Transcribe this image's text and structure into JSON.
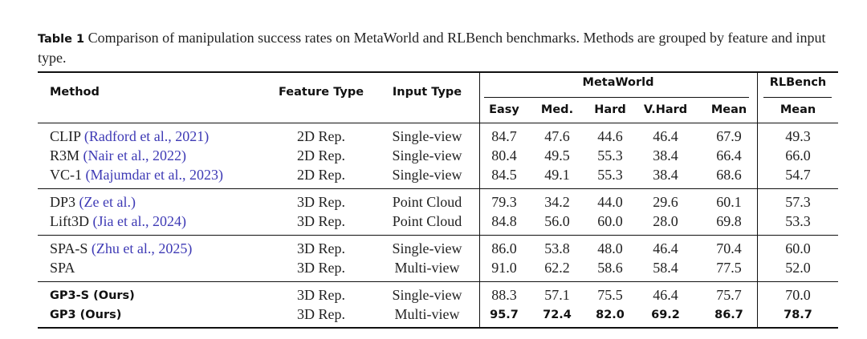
{
  "caption": {
    "label": "Table 1",
    "text": "Comparison of manipulation success rates on MetaWorld and RLBench benchmarks. Methods are grouped by feature and input type."
  },
  "headers": {
    "method": "Method",
    "feature_type": "Feature Type",
    "input_type": "Input Type",
    "metaworld": "MetaWorld",
    "rlbench": "RLBench",
    "easy": "Easy",
    "med": "Med.",
    "hard": "Hard",
    "vhard": "V.Hard",
    "mean": "Mean",
    "rl_mean": "Mean"
  },
  "rows": [
    {
      "name": "CLIP",
      "cite": "(Radford et al., 2021)",
      "feature": "2D Rep.",
      "input": "Single-view",
      "vals": [
        "84.7",
        "47.6",
        "44.6",
        "46.4",
        "67.9",
        "49.3"
      ]
    },
    {
      "name": "R3M",
      "cite": "(Nair et al., 2022)",
      "feature": "2D Rep.",
      "input": "Single-view",
      "vals": [
        "80.4",
        "49.5",
        "55.3",
        "38.4",
        "66.4",
        "66.0"
      ]
    },
    {
      "name": "VC-1",
      "cite": "(Majumdar et al., 2023)",
      "feature": "2D Rep.",
      "input": "Single-view",
      "vals": [
        "84.5",
        "49.1",
        "55.3",
        "38.4",
        "68.6",
        "54.7"
      ]
    },
    {
      "name": "DP3",
      "cite": "(Ze et al.)",
      "feature": "3D Rep.",
      "input": "Point Cloud",
      "vals": [
        "79.3",
        "34.2",
        "44.0",
        "29.6",
        "60.1",
        "57.3"
      ]
    },
    {
      "name": "Lift3D",
      "cite": "(Jia et al., 2024)",
      "feature": "3D Rep.",
      "input": "Point Cloud",
      "vals": [
        "84.8",
        "56.0",
        "60.0",
        "28.0",
        "69.8",
        "53.3"
      ]
    },
    {
      "name": "SPA-S",
      "cite": "(Zhu et al., 2025)",
      "feature": "3D Rep.",
      "input": "Single-view",
      "vals": [
        "86.0",
        "53.8",
        "48.0",
        "46.4",
        "70.4",
        "60.0"
      ]
    },
    {
      "name": "SPA",
      "cite": "",
      "feature": "3D Rep.",
      "input": "Multi-view",
      "vals": [
        "91.0",
        "62.2",
        "58.6",
        "58.4",
        "77.5",
        "52.0"
      ]
    },
    {
      "name": "GP3-S (Ours)",
      "cite": "",
      "feature": "3D Rep.",
      "input": "Single-view",
      "vals": [
        "88.3",
        "57.1",
        "75.5",
        "46.4",
        "75.7",
        "70.0"
      ]
    },
    {
      "name": "GP3 (Ours)",
      "cite": "",
      "feature": "3D Rep.",
      "input": "Multi-view",
      "vals": [
        "95.7",
        "72.4",
        "82.0",
        "69.2",
        "86.7",
        "78.7"
      ]
    }
  ],
  "bold_rows": [
    7,
    8
  ],
  "bold_value_rows": [
    8
  ],
  "colors": {
    "citation": "#3e3ab5",
    "text": "#222222"
  }
}
